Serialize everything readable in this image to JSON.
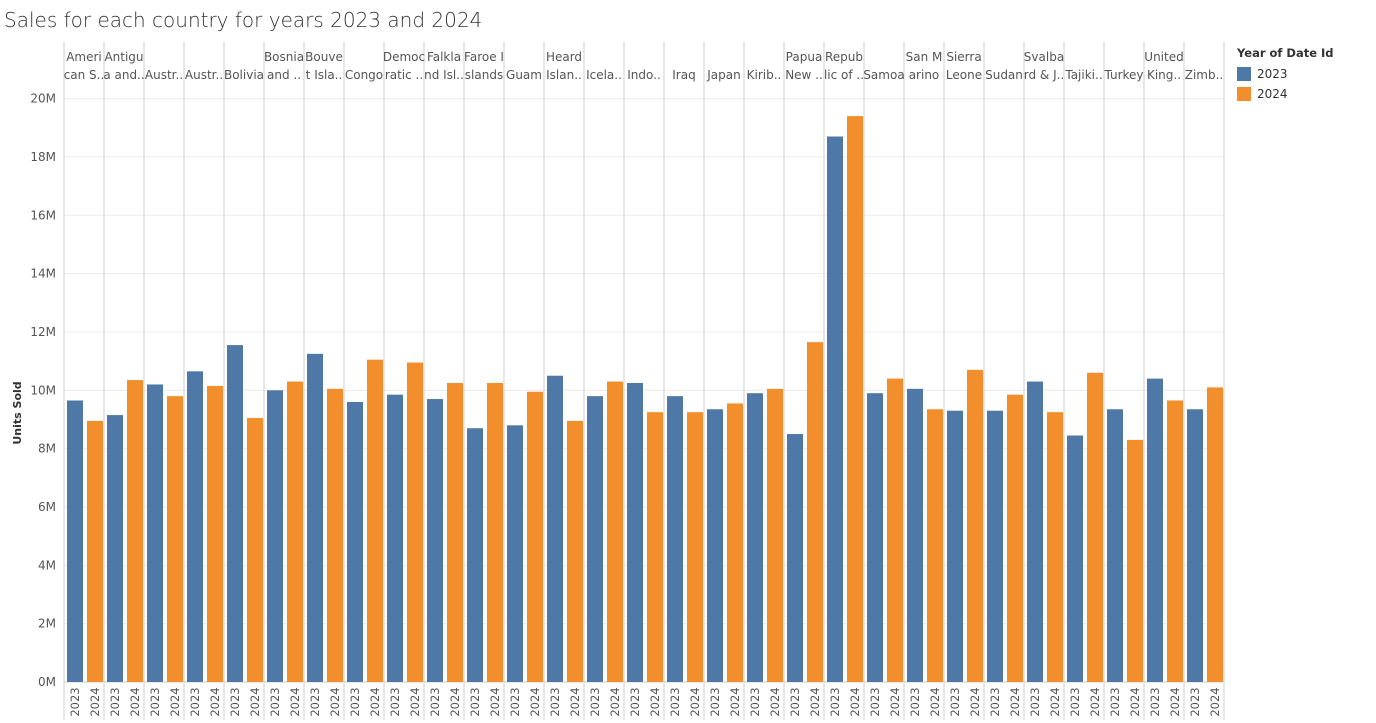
{
  "title": "Sales for each country for years 2023 and 2024",
  "legend": {
    "title": "Year of Date Id",
    "items": [
      {
        "label": "2023",
        "color": "#4e79a7"
      },
      {
        "label": "2024",
        "color": "#f28e2b"
      }
    ]
  },
  "chart_data": {
    "type": "bar",
    "title": "Sales for each country for years 2023 and 2024",
    "xlabel": "",
    "ylabel": "Units Sold",
    "ylim": [
      0,
      20500000
    ],
    "yticks": [
      "0M",
      "2M",
      "4M",
      "6M",
      "8M",
      "10M",
      "12M",
      "14M",
      "16M",
      "18M",
      "20M"
    ],
    "grid": true,
    "legend_position": "top-right",
    "sub_categories": [
      "2023",
      "2024"
    ],
    "categories": [
      {
        "header": [
          "Ameri",
          "can S.."
        ],
        "values": [
          9650000,
          8950000
        ]
      },
      {
        "header": [
          "Antigu",
          "a and.."
        ],
        "values": [
          9150000,
          10350000
        ]
      },
      {
        "header": [
          "",
          "Austr.."
        ],
        "values": [
          10200000,
          9800000
        ]
      },
      {
        "header": [
          "",
          "Austr.."
        ],
        "values": [
          10650000,
          10150000
        ]
      },
      {
        "header": [
          "",
          "Bolivia"
        ],
        "values": [
          11550000,
          9050000
        ]
      },
      {
        "header": [
          "Bosnia",
          "and .."
        ],
        "values": [
          10000000,
          10300000
        ]
      },
      {
        "header": [
          "Bouve",
          "t Isla.."
        ],
        "values": [
          11250000,
          10050000
        ]
      },
      {
        "header": [
          "",
          "Congo"
        ],
        "values": [
          9600000,
          11050000
        ]
      },
      {
        "header": [
          "Democ",
          "ratic .."
        ],
        "values": [
          9850000,
          10950000
        ]
      },
      {
        "header": [
          "Falkla",
          "nd Isl.."
        ],
        "values": [
          9700000,
          10250000
        ]
      },
      {
        "header": [
          "Faroe I",
          "slands"
        ],
        "values": [
          8700000,
          10250000
        ]
      },
      {
        "header": [
          "",
          "Guam"
        ],
        "values": [
          8800000,
          9950000
        ]
      },
      {
        "header": [
          "Heard",
          "Islan.."
        ],
        "values": [
          10500000,
          8950000
        ]
      },
      {
        "header": [
          "",
          "Icela.."
        ],
        "values": [
          9800000,
          10300000
        ]
      },
      {
        "header": [
          "",
          "Indo.."
        ],
        "values": [
          10250000,
          9250000
        ]
      },
      {
        "header": [
          "",
          "Iraq"
        ],
        "values": [
          9800000,
          9250000
        ]
      },
      {
        "header": [
          "",
          "Japan"
        ],
        "values": [
          9350000,
          9550000
        ]
      },
      {
        "header": [
          "",
          "Kirib.."
        ],
        "values": [
          9900000,
          10050000
        ]
      },
      {
        "header": [
          "Papua",
          "New .."
        ],
        "values": [
          8500000,
          11650000
        ]
      },
      {
        "header": [
          "Repub",
          "lic of .."
        ],
        "values": [
          18700000,
          19400000
        ]
      },
      {
        "header": [
          "",
          "Samoa"
        ],
        "values": [
          9900000,
          10400000
        ]
      },
      {
        "header": [
          "San M",
          "arino"
        ],
        "values": [
          10050000,
          9350000
        ]
      },
      {
        "header": [
          "Sierra",
          "Leone"
        ],
        "values": [
          9300000,
          10700000
        ]
      },
      {
        "header": [
          "",
          "Sudan"
        ],
        "values": [
          9300000,
          9850000
        ]
      },
      {
        "header": [
          "Svalba",
          "rd & J.."
        ],
        "values": [
          10300000,
          9250000
        ]
      },
      {
        "header": [
          "",
          "Tajiki.."
        ],
        "values": [
          8450000,
          10600000
        ]
      },
      {
        "header": [
          "",
          "Turkey"
        ],
        "values": [
          9350000,
          8300000
        ]
      },
      {
        "header": [
          "United",
          "King.."
        ],
        "values": [
          10400000,
          9650000
        ]
      },
      {
        "header": [
          "",
          "Zimb.."
        ],
        "values": [
          9350000,
          10100000
        ]
      }
    ]
  }
}
